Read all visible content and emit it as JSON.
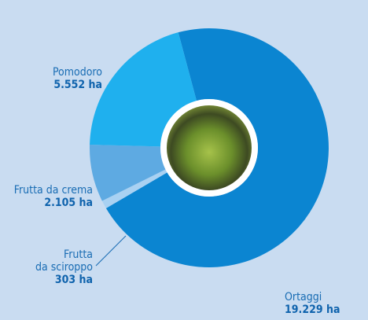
{
  "chart_data": {
    "type": "donut",
    "categories": [
      "Ortaggi",
      "Frutta\nda sciroppo",
      "Frutta da crema",
      "Pomodoro"
    ],
    "values": [
      19229,
      303,
      2105,
      5552
    ],
    "value_labels": [
      "19.229 ha",
      "303 ha",
      "2.105 ha",
      "5.552 ha"
    ],
    "colors": [
      "#0b85d1",
      "#a9d1f2",
      "#5eaae2",
      "#1fb0ee"
    ]
  }
}
